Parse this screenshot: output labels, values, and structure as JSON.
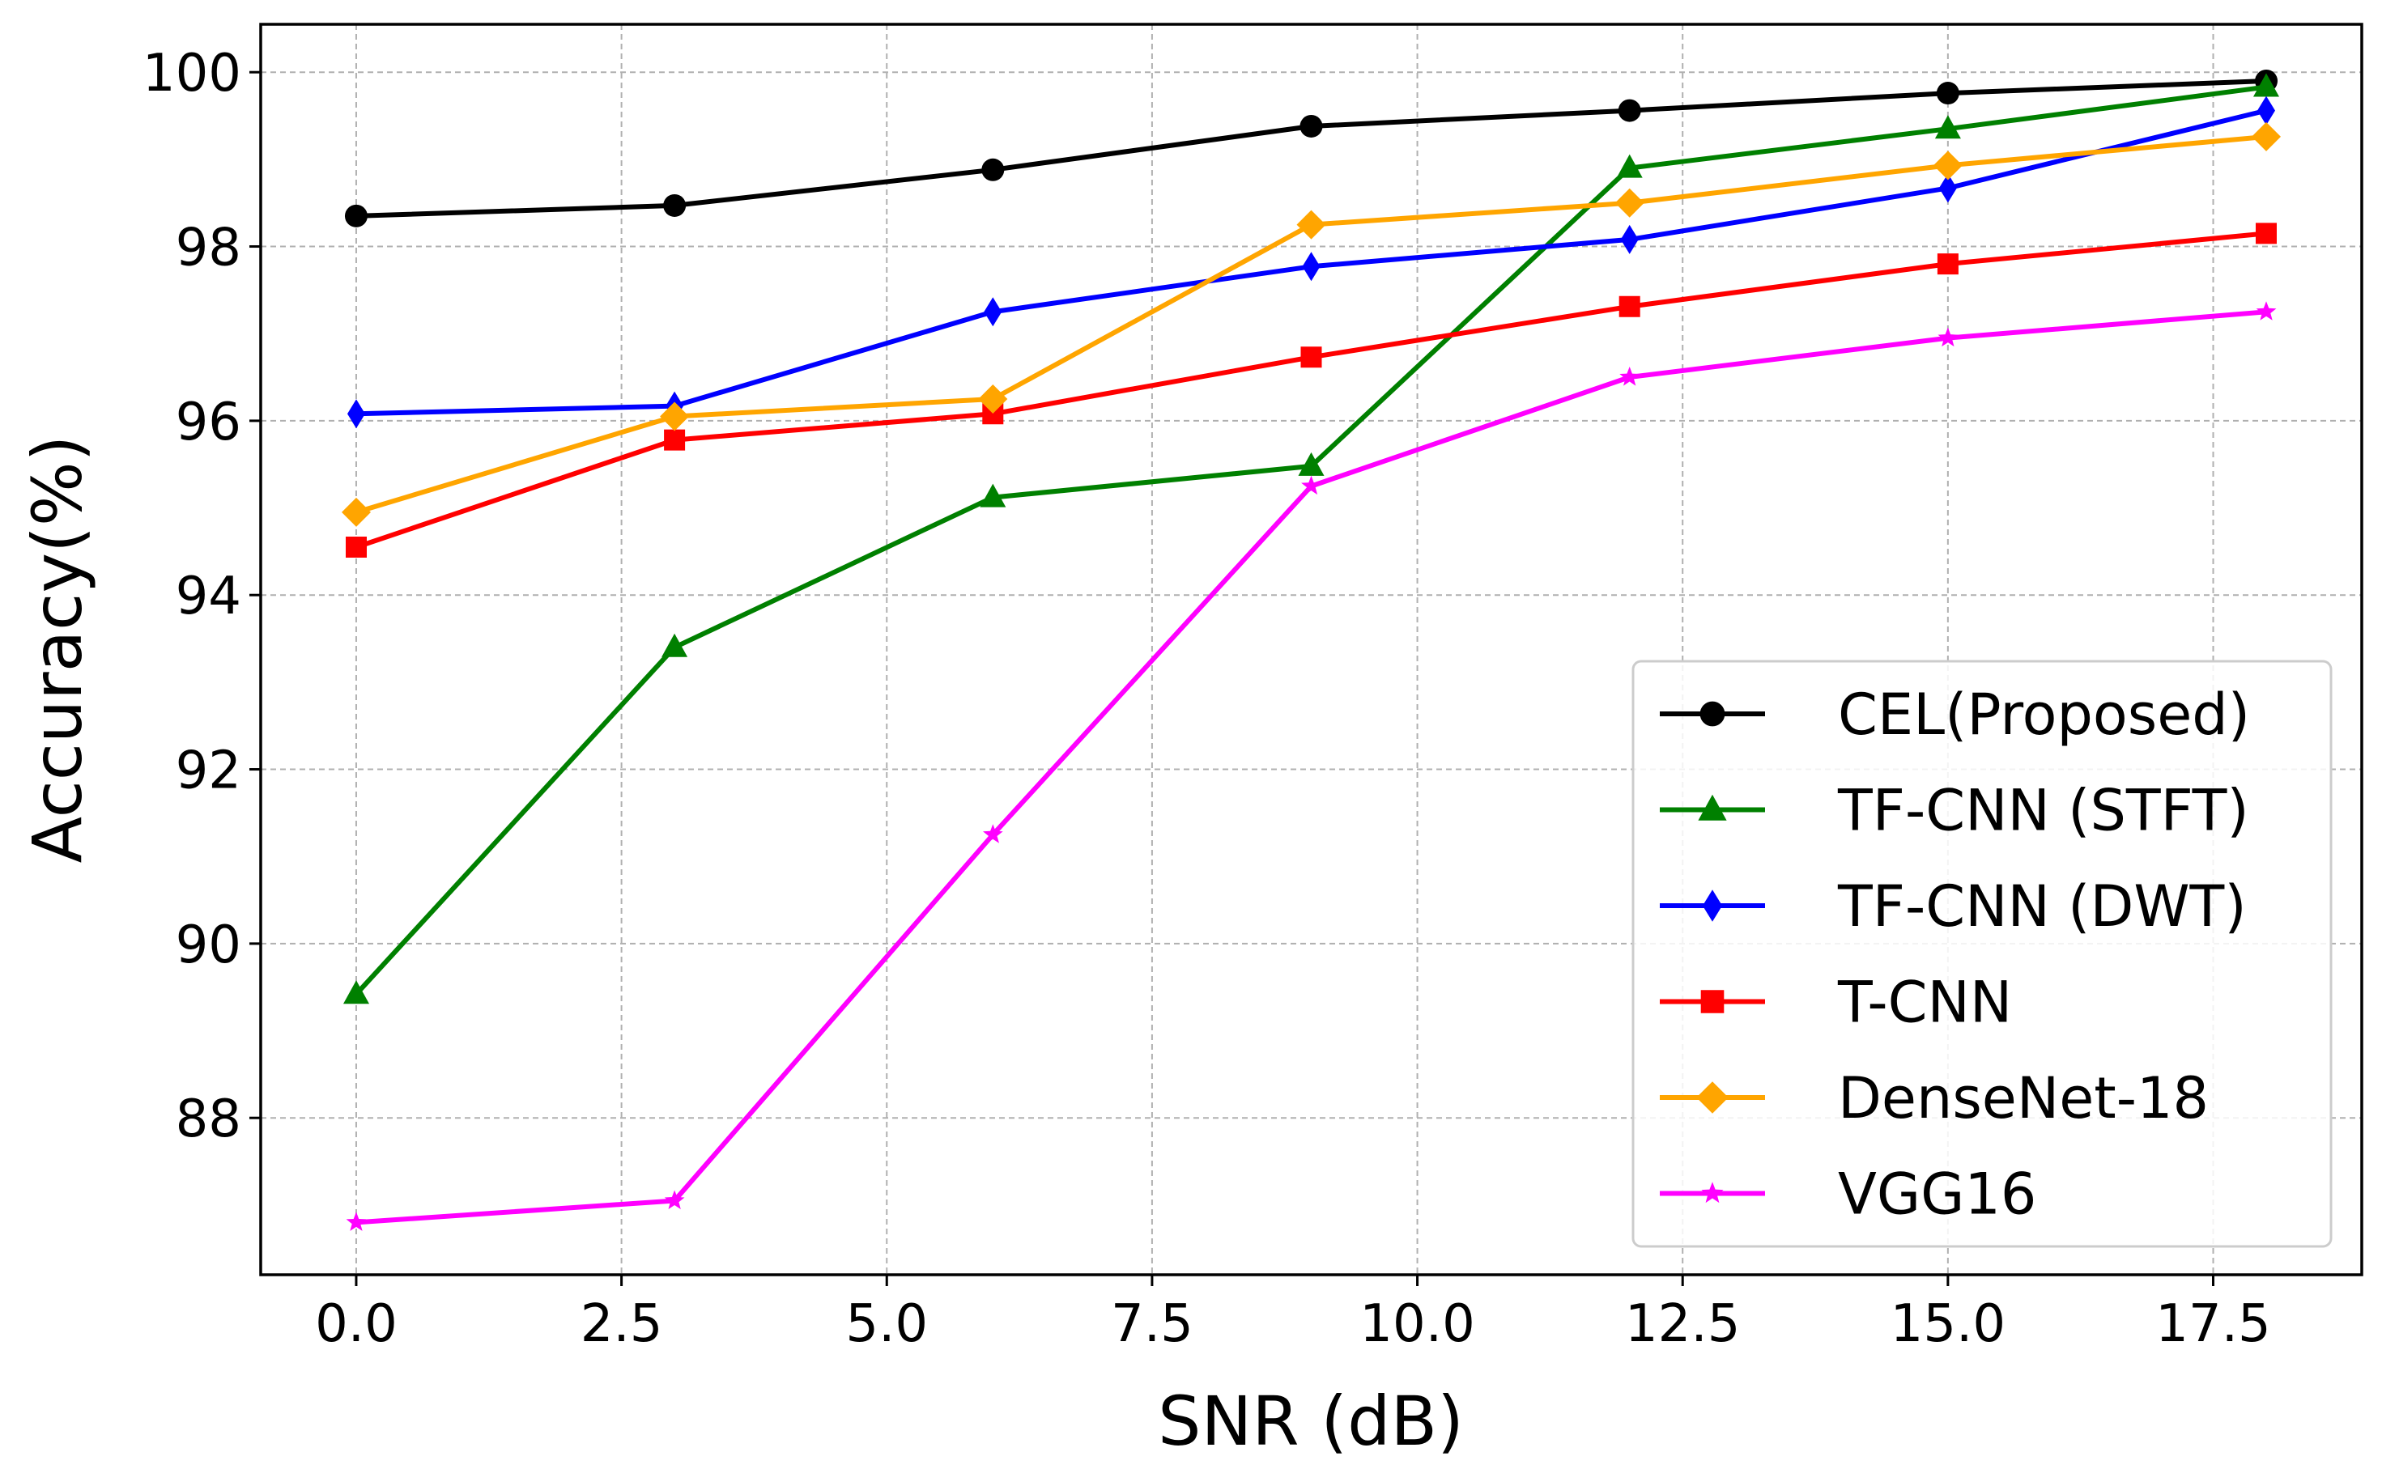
{
  "chart_data": {
    "type": "line",
    "title": "",
    "xlabel": "SNR (dB)",
    "ylabel": "Accuracy(%)",
    "xlim": [
      -0.9,
      18.9
    ],
    "ylim": [
      86.2,
      100.55
    ],
    "xticks": [
      0.0,
      2.5,
      5.0,
      7.5,
      10.0,
      12.5,
      15.0,
      17.5
    ],
    "xtick_labels": [
      "0.0",
      "2.5",
      "5.0",
      "7.5",
      "10.0",
      "12.5",
      "15.0",
      "17.5"
    ],
    "yticks": [
      88,
      90,
      92,
      94,
      96,
      98,
      100
    ],
    "ytick_labels": [
      "88",
      "90",
      "92",
      "94",
      "96",
      "98",
      "100"
    ],
    "grid": true,
    "legend_position": "lower-right",
    "x": [
      0,
      3,
      6,
      9,
      12,
      15,
      18
    ],
    "series": [
      {
        "name": "CEL(Proposed)",
        "color": "#000000",
        "marker": "circle",
        "values": [
          98.35,
          98.47,
          98.88,
          99.38,
          99.56,
          99.76,
          99.9
        ]
      },
      {
        "name": "TF-CNN (STFT)",
        "color": "#008000",
        "marker": "triangle",
        "values": [
          89.42,
          93.4,
          95.12,
          95.48,
          98.9,
          99.35,
          99.83
        ]
      },
      {
        "name": "TF-CNN (DWT)",
        "color": "#0000ff",
        "marker": "thin-diamond",
        "values": [
          96.08,
          96.17,
          97.25,
          97.77,
          98.08,
          98.67,
          99.56
        ]
      },
      {
        "name": "T-CNN",
        "color": "#ff0000",
        "marker": "square",
        "values": [
          94.55,
          95.78,
          96.08,
          96.73,
          97.31,
          97.8,
          98.15
        ]
      },
      {
        "name": "DenseNet-18",
        "color": "#ffa500",
        "marker": "diamond",
        "values": [
          94.95,
          96.05,
          96.25,
          98.25,
          98.5,
          98.93,
          99.26
        ]
      },
      {
        "name": "VGG16",
        "color": "#ff00ff",
        "marker": "star",
        "values": [
          86.8,
          87.05,
          91.25,
          95.25,
          96.5,
          96.95,
          97.25
        ]
      }
    ]
  }
}
